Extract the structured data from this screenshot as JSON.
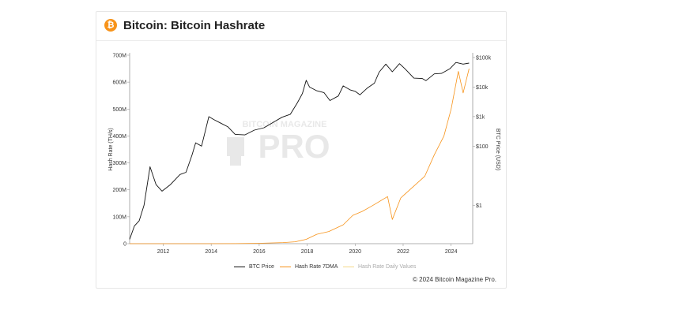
{
  "header": {
    "logo_glyph": "₿",
    "title": "Bitcoin: Bitcoin Hashrate"
  },
  "watermark": {
    "line1": "BITCOIN MAGAZINE",
    "line2": "PRO"
  },
  "footer": {
    "copyright": "© 2024 Bitcoin Magazine Pro."
  },
  "colors": {
    "btc_price": "#111111",
    "hashrate_7dma": "#f7931a",
    "hashrate_daily": "#f5d98a",
    "logo": "#f7931a"
  },
  "chart_data": {
    "type": "line",
    "ylabel": "Hash Rate (TH/s)",
    "y2label": "BTC Price (USD)",
    "xlabel": "",
    "xlim": [
      2010.6,
      2024.9
    ],
    "ylim": [
      0,
      700000000
    ],
    "y2_scale": "log",
    "y2lim": [
      0.05,
      120000
    ],
    "x_ticks": [
      "2012",
      "2014",
      "2016",
      "2018",
      "2020",
      "2022",
      "2024"
    ],
    "x_tick_values": [
      2012,
      2014,
      2016,
      2018,
      2020,
      2022,
      2024
    ],
    "y_ticks": [
      "0",
      "100M",
      "200M",
      "300M",
      "400M",
      "500M",
      "600M",
      "700M"
    ],
    "y_tick_values": [
      0,
      100000000,
      200000000,
      300000000,
      400000000,
      500000000,
      600000000,
      700000000
    ],
    "y2_ticks": [
      "$1",
      "$100",
      "$1k",
      "$10k",
      "$100k"
    ],
    "y2_tick_values": [
      1,
      100,
      1000,
      10000,
      100000
    ],
    "legend_position": "bottom",
    "series": [
      {
        "name": "BTC Price",
        "axis": "right",
        "x": [
          2010.6,
          2010.8,
          2011.0,
          2011.2,
          2011.45,
          2011.7,
          2011.95,
          2012.3,
          2012.7,
          2012.95,
          2013.2,
          2013.35,
          2013.6,
          2013.9,
          2014.1,
          2014.4,
          2014.7,
          2015.0,
          2015.4,
          2015.8,
          2016.2,
          2016.6,
          2016.95,
          2017.3,
          2017.6,
          2017.8,
          2017.96,
          2018.1,
          2018.4,
          2018.7,
          2018.95,
          2019.3,
          2019.5,
          2019.8,
          2020.0,
          2020.2,
          2020.5,
          2020.8,
          2021.0,
          2021.28,
          2021.55,
          2021.85,
          2022.1,
          2022.45,
          2022.8,
          2022.95,
          2023.3,
          2023.6,
          2023.95,
          2024.2,
          2024.5,
          2024.75
        ],
        "y": [
          0.07,
          0.2,
          0.3,
          1.0,
          20,
          5,
          3,
          5,
          11,
          13,
          50,
          130,
          100,
          1000,
          800,
          600,
          450,
          250,
          240,
          350,
          420,
          650,
          950,
          1200,
          3000,
          6000,
          17000,
          10000,
          7500,
          6500,
          3500,
          5000,
          11000,
          8000,
          7200,
          5500,
          9200,
          13500,
          32000,
          60000,
          33000,
          62000,
          40000,
          20000,
          19500,
          16500,
          28000,
          29000,
          42000,
          68000,
          60000,
          65000
        ]
      },
      {
        "name": "Hash Rate 7DMA",
        "axis": "left",
        "x": [
          2010.6,
          2013.0,
          2014.0,
          2015.0,
          2016.0,
          2017.0,
          2017.5,
          2017.96,
          2018.4,
          2018.9,
          2019.5,
          2019.9,
          2020.3,
          2020.7,
          2021.35,
          2021.55,
          2021.9,
          2022.4,
          2022.9,
          2023.3,
          2023.7,
          2024.0,
          2024.3,
          2024.5,
          2024.75
        ],
        "y": [
          0,
          0,
          100000,
          400000,
          1500000,
          4000000,
          7000000,
          16000000,
          35000000,
          45000000,
          70000000,
          105000000,
          120000000,
          140000000,
          175000000,
          90000000,
          170000000,
          210000000,
          250000000,
          330000000,
          400000000,
          500000000,
          640000000,
          560000000,
          650000000
        ]
      },
      {
        "name": "Hash Rate Daily Values",
        "axis": "left",
        "x": [],
        "y": []
      }
    ]
  }
}
